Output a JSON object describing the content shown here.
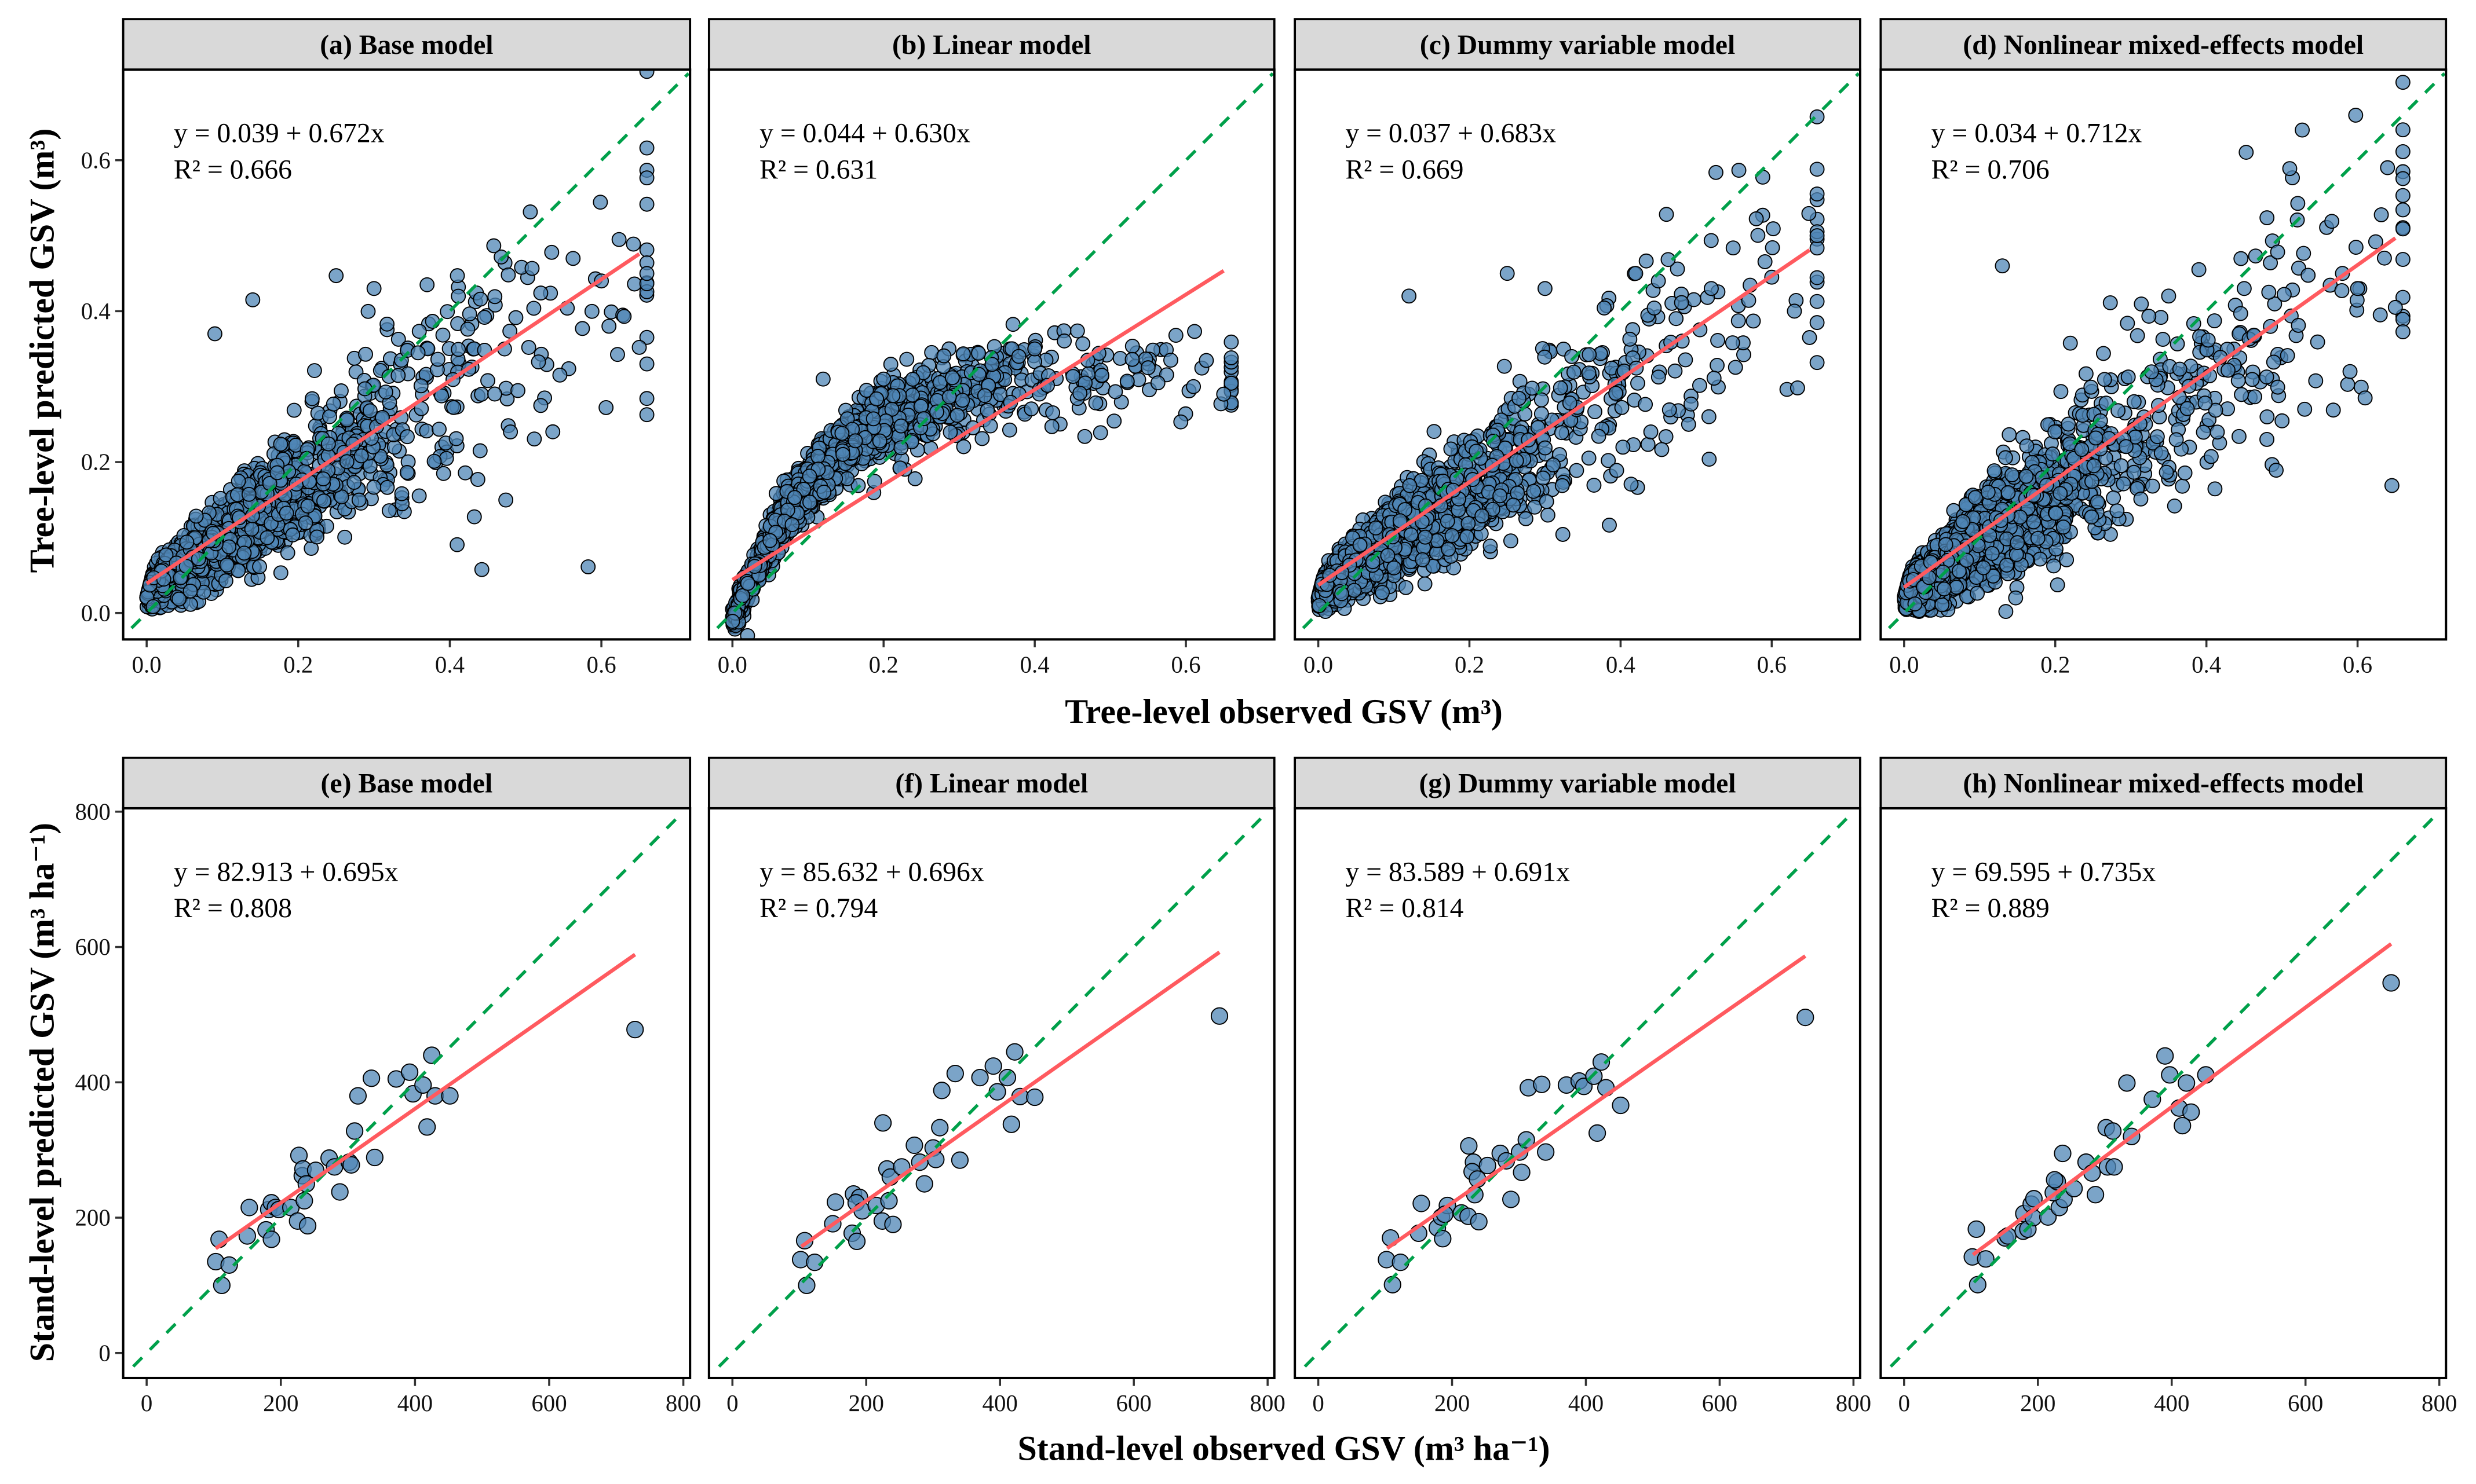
{
  "figure": {
    "top_row_x_title": "Tree-level observed GSV (m³)",
    "top_row_y_title": "Tree-level predicted GSV (m³)",
    "bottom_row_x_title": "Stand-level observed GSV (m³ ha⁻¹)",
    "bottom_row_y_title": "Stand-level predicted GSV (m³ ha⁻¹)"
  },
  "colors": {
    "points": "#4f86b5",
    "fit_line": "#ff5a5f",
    "identity_line": "#00a04a",
    "strip": "#d9d9d9"
  },
  "chart_data": [
    {
      "type": "scatter",
      "panel": "a",
      "title": "(a) Base model",
      "equation": "y = 0.039 + 0.672x",
      "r2": "R² = 0.666",
      "intercept": 0.039,
      "slope": 0.672,
      "fit_x_range": [
        0,
        0.65
      ],
      "xlim": [
        -0.031,
        0.717
      ],
      "ylim": [
        -0.035,
        0.72
      ],
      "xticks": [
        "0.0",
        "0.2",
        "0.4",
        "0.6"
      ],
      "yticks": [
        "0.0",
        "0.2",
        "0.4",
        "0.6"
      ],
      "identity_line": true,
      "points_sample": [
        [
          0.25,
          0.447
        ],
        [
          0.41,
          0.447
        ],
        [
          0.14,
          0.415
        ],
        [
          0.6,
          0.44
        ],
        [
          0.63,
          0.393
        ],
        [
          0.65,
          0.352
        ],
        [
          0.52,
          0.424
        ],
        [
          0.555,
          0.404
        ],
        [
          0.52,
          0.275
        ],
        [
          0.48,
          0.24
        ],
        [
          0.44,
          0.215
        ],
        [
          0.37,
          0.435
        ],
        [
          0.3,
          0.43
        ],
        [
          0.09,
          0.37
        ],
        [
          0.575,
          0.377
        ],
        [
          0.61,
          0.38
        ]
      ]
    },
    {
      "type": "scatter",
      "panel": "b",
      "title": "(b) Linear model",
      "equation": "y = 0.044 + 0.630x",
      "r2": "R² = 0.631",
      "intercept": 0.044,
      "slope": 0.63,
      "fit_x_range": [
        0,
        0.65
      ],
      "xlim": [
        -0.031,
        0.717
      ],
      "ylim": [
        -0.035,
        0.72
      ],
      "xticks": [
        "0.0",
        "0.2",
        "0.4",
        "0.6"
      ],
      "yticks": [
        "0.0",
        "0.2",
        "0.4",
        "0.6"
      ],
      "identity_line": true,
      "points_sample": [
        [
          0.65,
          0.29
        ],
        [
          0.61,
          0.3
        ],
        [
          0.58,
          0.335
        ],
        [
          0.55,
          0.325
        ],
        [
          0.47,
          0.335
        ],
        [
          0.4,
          0.35
        ],
        [
          0.2,
          0.31
        ],
        [
          0.12,
          0.31
        ],
        [
          0.02,
          -0.03
        ]
      ]
    },
    {
      "type": "scatter",
      "panel": "c",
      "title": "(c) Dummy variable model",
      "equation": "y = 0.037 + 0.683x",
      "r2": "R² = 0.669",
      "intercept": 0.037,
      "slope": 0.683,
      "fit_x_range": [
        0,
        0.65
      ],
      "xlim": [
        -0.031,
        0.717
      ],
      "ylim": [
        -0.035,
        0.72
      ],
      "xticks": [
        "0.0",
        "0.2",
        "0.4",
        "0.6"
      ],
      "yticks": [
        "0.0",
        "0.2",
        "0.4",
        "0.6"
      ],
      "identity_line": true,
      "points_sample": [
        [
          0.25,
          0.45
        ],
        [
          0.42,
          0.45
        ],
        [
          0.45,
          0.44
        ],
        [
          0.6,
          0.445
        ],
        [
          0.65,
          0.365
        ],
        [
          0.63,
          0.4
        ],
        [
          0.52,
          0.43
        ],
        [
          0.12,
          0.42
        ],
        [
          0.3,
          0.43
        ],
        [
          0.49,
          0.25
        ],
        [
          0.44,
          0.24
        ]
      ]
    },
    {
      "type": "scatter",
      "panel": "d",
      "title": "(d) Nonlinear mixed-effects model",
      "equation": "y = 0.034 + 0.712x",
      "r2": "R² = 0.706",
      "intercept": 0.034,
      "slope": 0.712,
      "fit_x_range": [
        0,
        0.65
      ],
      "xlim": [
        -0.031,
        0.717
      ],
      "ylim": [
        -0.035,
        0.72
      ],
      "xticks": [
        "0.0",
        "0.2",
        "0.4",
        "0.6"
      ],
      "yticks": [
        "0.0",
        "0.2",
        "0.4",
        "0.6"
      ],
      "identity_line": true,
      "points_sample": [
        [
          0.13,
          0.46
        ],
        [
          0.39,
          0.455
        ],
        [
          0.45,
          0.43
        ],
        [
          0.58,
          0.45
        ],
        [
          0.65,
          0.405
        ],
        [
          0.6,
          0.43
        ],
        [
          0.63,
          0.395
        ],
        [
          0.59,
          0.32
        ],
        [
          0.61,
          0.285
        ],
        [
          0.53,
          0.27
        ],
        [
          0.48,
          0.23
        ],
        [
          0.35,
          0.42
        ]
      ]
    },
    {
      "type": "scatter",
      "panel": "e",
      "title": "(e) Base model",
      "equation": "y = 82.913 + 0.695x",
      "r2": "R² = 0.808",
      "intercept": 82.913,
      "slope": 0.695,
      "fit_x_range": [
        103,
        728
      ],
      "xlim": [
        -35,
        810
      ],
      "ylim": [
        -37,
        805
      ],
      "xticks": [
        "0",
        "200",
        "400",
        "600",
        "800"
      ],
      "yticks": [
        "0",
        "200",
        "400",
        "600",
        "800"
      ],
      "identity_line": true,
      "points": [
        [
          103,
          135
        ],
        [
          108,
          168
        ],
        [
          112,
          100
        ],
        [
          123,
          130
        ],
        [
          150,
          173
        ],
        [
          153,
          215
        ],
        [
          178,
          182
        ],
        [
          182,
          212
        ],
        [
          186,
          168
        ],
        [
          186,
          222
        ],
        [
          192,
          215
        ],
        [
          197,
          212
        ],
        [
          215,
          215
        ],
        [
          225,
          195
        ],
        [
          227,
          292
        ],
        [
          232,
          262
        ],
        [
          233,
          272
        ],
        [
          235,
          225
        ],
        [
          238,
          250
        ],
        [
          240,
          188
        ],
        [
          252,
          270
        ],
        [
          272,
          288
        ],
        [
          280,
          275
        ],
        [
          288,
          238
        ],
        [
          302,
          282
        ],
        [
          305,
          278
        ],
        [
          310,
          328
        ],
        [
          315,
          380
        ],
        [
          335,
          406
        ],
        [
          340,
          289
        ],
        [
          372,
          405
        ],
        [
          392,
          415
        ],
        [
          397,
          383
        ],
        [
          412,
          396
        ],
        [
          418,
          334
        ],
        [
          425,
          440
        ],
        [
          430,
          380
        ],
        [
          452,
          380
        ],
        [
          728,
          478
        ]
      ]
    },
    {
      "type": "scatter",
      "panel": "f",
      "title": "(f) Linear model",
      "equation": "y = 85.632 + 0.696x",
      "r2": "R² = 0.794",
      "intercept": 85.632,
      "slope": 0.696,
      "fit_x_range": [
        103,
        728
      ],
      "xlim": [
        -35,
        810
      ],
      "ylim": [
        -37,
        805
      ],
      "xticks": [
        "0",
        "200",
        "400",
        "600",
        "800"
      ],
      "yticks": [
        "0",
        "200",
        "400",
        "600",
        "800"
      ],
      "identity_line": true,
      "points": [
        [
          108,
          166
        ],
        [
          102,
          138
        ],
        [
          123,
          134
        ],
        [
          111,
          100
        ],
        [
          150,
          191
        ],
        [
          154,
          223
        ],
        [
          179,
          177
        ],
        [
          186,
          165
        ],
        [
          181,
          235
        ],
        [
          190,
          230
        ],
        [
          185,
          222
        ],
        [
          194,
          210
        ],
        [
          215,
          218
        ],
        [
          224,
          195
        ],
        [
          240,
          190
        ],
        [
          234,
          225
        ],
        [
          225,
          340
        ],
        [
          231,
          272
        ],
        [
          236,
          260
        ],
        [
          253,
          275
        ],
        [
          272,
          307
        ],
        [
          280,
          282
        ],
        [
          287,
          250
        ],
        [
          300,
          303
        ],
        [
          304,
          286
        ],
        [
          310,
          333
        ],
        [
          313,
          388
        ],
        [
          333,
          413
        ],
        [
          340,
          285
        ],
        [
          370,
          407
        ],
        [
          390,
          424
        ],
        [
          411,
          407
        ],
        [
          396,
          386
        ],
        [
          422,
          445
        ],
        [
          417,
          338
        ],
        [
          430,
          379
        ],
        [
          452,
          378
        ],
        [
          728,
          498
        ]
      ]
    },
    {
      "type": "scatter",
      "panel": "g",
      "title": "(g) Dummy variable model",
      "equation": "y = 83.589 + 0.691x",
      "r2": "R² = 0.814",
      "intercept": 83.589,
      "slope": 0.691,
      "fit_x_range": [
        103,
        728
      ],
      "xlim": [
        -35,
        810
      ],
      "ylim": [
        -37,
        805
      ],
      "xticks": [
        "0",
        "200",
        "400",
        "600",
        "800"
      ],
      "yticks": [
        "0",
        "200",
        "400",
        "600",
        "800"
      ],
      "identity_line": true,
      "points": [
        [
          108,
          170
        ],
        [
          102,
          138
        ],
        [
          123,
          134
        ],
        [
          111,
          101
        ],
        [
          150,
          177
        ],
        [
          154,
          221
        ],
        [
          178,
          185
        ],
        [
          186,
          169
        ],
        [
          184,
          201
        ],
        [
          193,
          218
        ],
        [
          189,
          205
        ],
        [
          214,
          207
        ],
        [
          224,
          202
        ],
        [
          240,
          194
        ],
        [
          234,
          234
        ],
        [
          225,
          306
        ],
        [
          232,
          282
        ],
        [
          230,
          268
        ],
        [
          238,
          257
        ],
        [
          253,
          277
        ],
        [
          272,
          295
        ],
        [
          281,
          284
        ],
        [
          288,
          227
        ],
        [
          301,
          297
        ],
        [
          304,
          267
        ],
        [
          311,
          315
        ],
        [
          314,
          392
        ],
        [
          334,
          397
        ],
        [
          340,
          297
        ],
        [
          371,
          396
        ],
        [
          390,
          402
        ],
        [
          397,
          394
        ],
        [
          412,
          409
        ],
        [
          423,
          430
        ],
        [
          417,
          325
        ],
        [
          430,
          392
        ],
        [
          452,
          366
        ],
        [
          728,
          496
        ]
      ]
    },
    {
      "type": "scatter",
      "panel": "h",
      "title": "(h) Nonlinear mixed-effects model",
      "equation": "y = 69.595 + 0.735x",
      "r2": "R² = 0.889",
      "intercept": 69.595,
      "slope": 0.735,
      "fit_x_range": [
        103,
        728
      ],
      "xlim": [
        -35,
        810
      ],
      "ylim": [
        -37,
        805
      ],
      "xticks": [
        "0",
        "200",
        "400",
        "600",
        "800"
      ],
      "yticks": [
        "0",
        "200",
        "400",
        "600",
        "800"
      ],
      "identity_line": true,
      "points": [
        [
          102,
          142
        ],
        [
          122,
          139
        ],
        [
          110,
          101
        ],
        [
          108,
          183
        ],
        [
          151,
          170
        ],
        [
          155,
          173
        ],
        [
          178,
          180
        ],
        [
          185,
          183
        ],
        [
          179,
          206
        ],
        [
          190,
          220
        ],
        [
          194,
          228
        ],
        [
          193,
          200
        ],
        [
          215,
          201
        ],
        [
          232,
          215
        ],
        [
          239,
          227
        ],
        [
          223,
          237
        ],
        [
          229,
          253
        ],
        [
          225,
          256
        ],
        [
          254,
          243
        ],
        [
          237,
          295
        ],
        [
          272,
          282
        ],
        [
          281,
          266
        ],
        [
          286,
          234
        ],
        [
          302,
          333
        ],
        [
          312,
          328
        ],
        [
          304,
          275
        ],
        [
          314,
          275
        ],
        [
          340,
          320
        ],
        [
          333,
          399
        ],
        [
          371,
          375
        ],
        [
          390,
          439
        ],
        [
          397,
          411
        ],
        [
          422,
          399
        ],
        [
          411,
          362
        ],
        [
          429,
          356
        ],
        [
          416,
          336
        ],
        [
          451,
          411
        ],
        [
          728,
          547
        ]
      ]
    }
  ]
}
